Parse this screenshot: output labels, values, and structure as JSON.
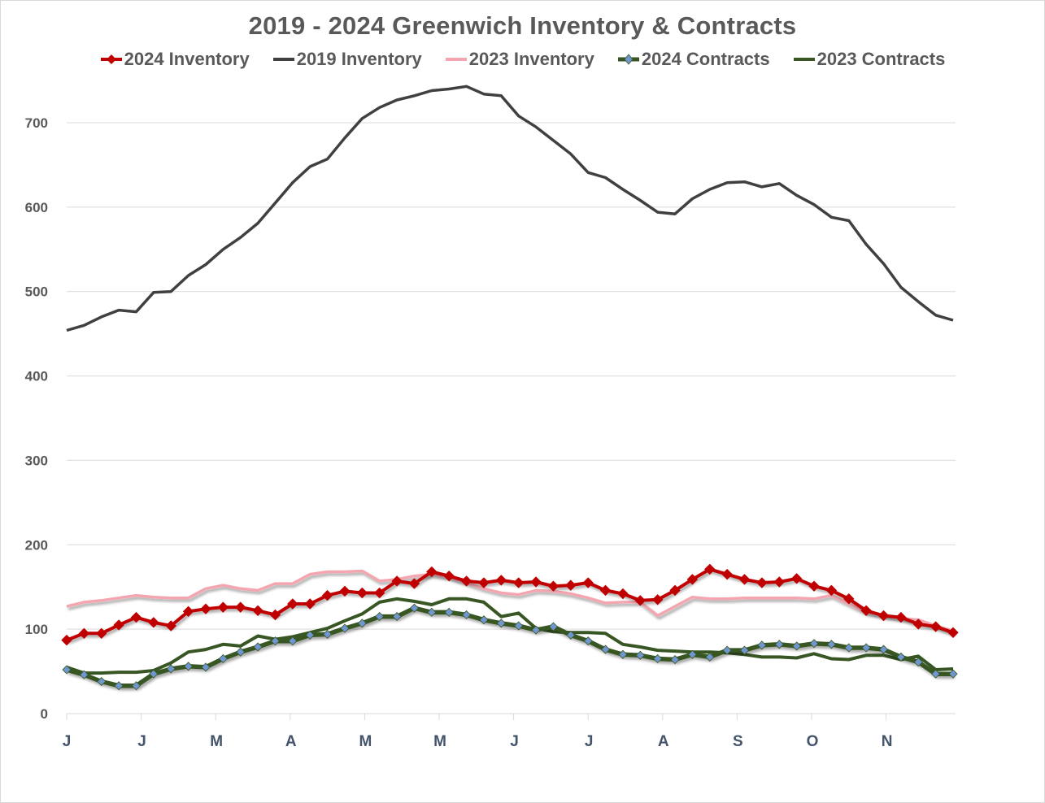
{
  "chart_data": {
    "type": "line",
    "title": "2019 - 2024 Greenwich Inventory & Contracts",
    "xlabel": "",
    "ylabel": "",
    "ylim": [
      0,
      750
    ],
    "yticks": [
      0,
      100,
      200,
      300,
      400,
      500,
      600,
      700
    ],
    "month_labels": [
      "J",
      "J",
      "M",
      "A",
      "M",
      "M",
      "J",
      "J",
      "A",
      "S",
      "O",
      "N"
    ],
    "grid": true,
    "legend_position": "top",
    "points_per_series": 52,
    "series": [
      {
        "name": "2024 Inventory",
        "color": "#c00000",
        "marker": "diamond",
        "values": [
          87,
          95,
          95,
          105,
          114,
          108,
          104,
          121,
          124,
          126,
          126,
          122,
          117,
          130,
          130,
          140,
          145,
          143,
          143,
          157,
          154,
          168,
          163,
          157,
          155,
          158,
          155,
          156,
          151,
          152,
          155,
          146,
          142,
          134,
          135,
          146,
          159,
          171,
          165,
          159,
          155,
          156,
          160,
          151,
          146,
          136,
          122,
          116,
          114,
          106,
          103,
          96
        ]
      },
      {
        "name": "2019 Inventory",
        "color": "#404040",
        "marker": "none",
        "values": [
          454,
          460,
          470,
          478,
          476,
          499,
          500,
          519,
          532,
          550,
          564,
          581,
          605,
          629,
          648,
          657,
          682,
          705,
          718,
          727,
          732,
          738,
          740,
          743,
          734,
          732,
          708,
          695,
          679,
          663,
          641,
          635,
          621,
          608,
          594,
          592,
          610,
          621,
          629,
          630,
          624,
          628,
          614,
          603,
          588,
          584,
          556,
          533,
          505,
          488,
          472,
          466
        ]
      },
      {
        "name": "2023 Inventory",
        "color": "#f4a6b0",
        "marker": "none",
        "values": [
          127,
          132,
          134,
          137,
          140,
          138,
          137,
          137,
          148,
          152,
          148,
          146,
          154,
          154,
          165,
          168,
          168,
          169,
          157,
          159,
          163,
          165,
          162,
          155,
          148,
          143,
          141,
          146,
          145,
          142,
          137,
          131,
          132,
          132,
          116,
          127,
          138,
          136,
          136,
          137,
          137,
          137,
          137,
          136,
          140,
          130,
          120,
          117,
          113,
          111,
          104,
          98
        ]
      },
      {
        "name": "2024 Contracts",
        "color": "#375623",
        "marker": "diamond",
        "marker_color": "#6f96cf",
        "values": [
          52,
          46,
          38,
          33,
          33,
          47,
          53,
          56,
          55,
          65,
          73,
          79,
          86,
          86,
          93,
          94,
          101,
          107,
          115,
          115,
          125,
          120,
          120,
          117,
          111,
          107,
          104,
          99,
          103,
          93,
          86,
          76,
          70,
          69,
          65,
          64,
          70,
          67,
          75,
          75,
          81,
          82,
          80,
          83,
          82,
          78,
          78,
          76,
          67,
          61,
          47,
          47
        ]
      },
      {
        "name": "2023 Contracts",
        "color": "#375623",
        "marker": "none",
        "values": [
          55,
          48,
          48,
          49,
          49,
          51,
          60,
          73,
          76,
          82,
          80,
          92,
          88,
          91,
          96,
          101,
          110,
          118,
          132,
          136,
          133,
          129,
          136,
          136,
          132,
          115,
          119,
          101,
          97,
          96,
          96,
          95,
          82,
          79,
          75,
          74,
          73,
          73,
          72,
          70,
          67,
          67,
          66,
          71,
          65,
          64,
          69,
          69,
          64,
          68,
          52,
          53
        ]
      }
    ]
  }
}
